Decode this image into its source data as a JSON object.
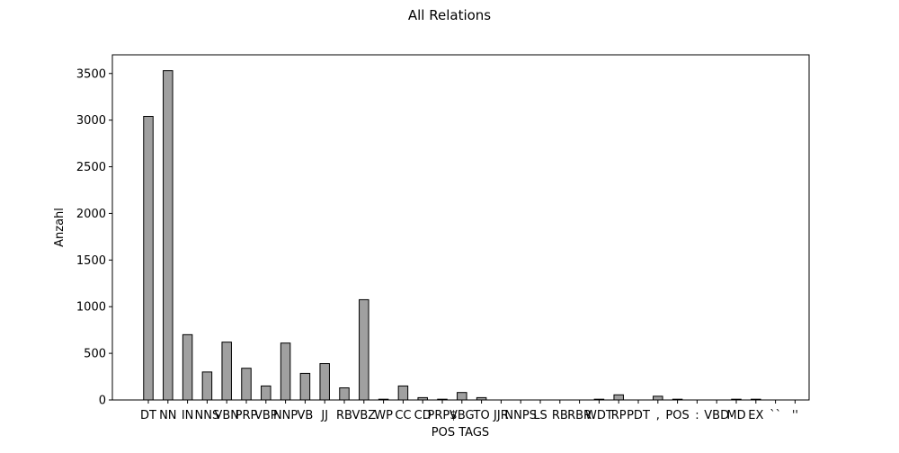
{
  "chart_data": {
    "type": "bar",
    "title": "All Relations",
    "xlabel": "POS TAGS",
    "ylabel": "Anzahl",
    "categories": [
      "DT",
      "NN",
      "IN",
      "NNS",
      "VBN",
      "PRP",
      "VBP",
      "NNP",
      "VB",
      "JJ",
      "RB",
      "VBZ",
      "WP",
      "CC",
      "CD",
      "PRP$",
      "VBG",
      "TO",
      "JJR",
      "NNPS",
      "LS",
      "RB",
      "RBR",
      "WDT",
      "RP",
      "PDT",
      ",",
      "POS",
      ":",
      "VBD",
      "MD",
      "EX",
      "``",
      "''"
    ],
    "values": [
      3040,
      3530,
      700,
      300,
      620,
      340,
      150,
      610,
      285,
      390,
      130,
      1075,
      8,
      150,
      25,
      8,
      80,
      25,
      0,
      0,
      0,
      0,
      0,
      8,
      55,
      0,
      40,
      8,
      0,
      0,
      8,
      8,
      0,
      0
    ],
    "ylim": [
      0,
      3700
    ],
    "yticks": [
      0,
      500,
      1000,
      1500,
      2000,
      2500,
      3000,
      3500
    ],
    "bar_color": "#a0a0a0",
    "edge_color": "#000000",
    "grid": false,
    "legend": false
  }
}
